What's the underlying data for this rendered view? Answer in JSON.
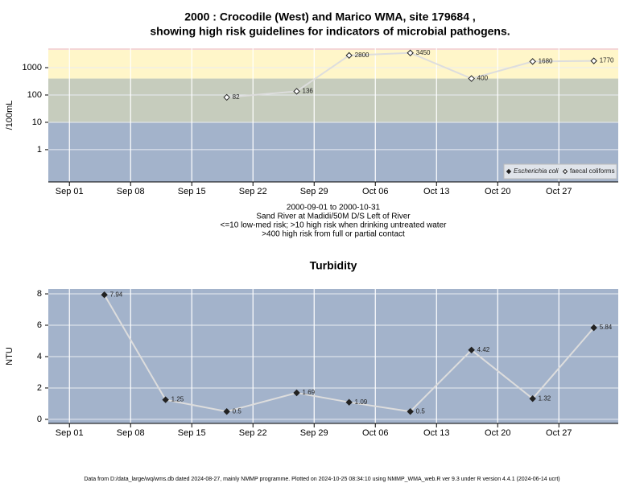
{
  "chart_data": [
    {
      "type": "line",
      "title": [
        "2000 : Crocodile (West) and Marico WMA, site 179684 ,",
        "showing high risk guidelines for indicators of microbial pathogens."
      ],
      "ylabel": "/100mL",
      "log_scale": true,
      "x": [
        "2000-09-19",
        "2000-09-27",
        "2000-10-03",
        "2000-10-10",
        "2000-10-17",
        "2000-10-24",
        "2000-10-31"
      ],
      "series": [
        {
          "name": "Escherichia coli",
          "color": "#222222",
          "marker": "filled",
          "values": [
            null,
            null,
            null,
            null,
            null,
            null,
            null
          ]
        },
        {
          "name": "faecal coliforms",
          "color": "#dddddd",
          "marker": "open",
          "values": [
            82,
            136,
            2800,
            3450,
            400,
            1680,
            1770
          ]
        }
      ],
      "xlim": [
        "2000-08-29T14:00",
        "2000-11-02T19:00"
      ],
      "xticks": [
        {
          "value": "2000-09-01",
          "label": "Sep 01"
        },
        {
          "value": "2000-09-08",
          "label": "Sep 08"
        },
        {
          "value": "2000-09-15",
          "label": "Sep 15"
        },
        {
          "value": "2000-09-22",
          "label": "Sep 22"
        },
        {
          "value": "2000-09-29",
          "label": "Sep 29"
        },
        {
          "value": "2000-10-06",
          "label": "Oct 06"
        },
        {
          "value": "2000-10-13",
          "label": "Oct 13"
        },
        {
          "value": "2000-10-20",
          "label": "Oct 20"
        },
        {
          "value": "2000-10-27",
          "label": "Oct 27"
        }
      ],
      "ylim": [
        0.066,
        5100
      ],
      "yticks": [
        1,
        10,
        100,
        1000
      ],
      "band_edges": [
        10,
        400
      ],
      "band_colors": [
        "#a3b3cb",
        "#c6ccbd",
        "#fff6c9"
      ],
      "grid": true,
      "legend": "bottom-right",
      "notes": [
        "2000-09-01 to 2000-10-31",
        "Sand River at Madidi/50M D/S Left of River",
        "<=10 low-med risk; >10 high risk when drinking untreated water",
        ">400 high risk from full or partial contact"
      ]
    },
    {
      "type": "line",
      "title": "Turbidity",
      "ylabel": "NTU",
      "color": "#dddddd",
      "background": "#a3b3cb",
      "x": [
        "2000-09-05",
        "2000-09-12",
        "2000-09-19",
        "2000-09-27",
        "2000-10-03",
        "2000-10-10",
        "2000-10-17",
        "2000-10-24",
        "2000-10-31"
      ],
      "values": [
        7.94,
        1.25,
        0.5,
        1.69,
        1.09,
        0.5,
        4.42,
        1.32,
        5.84
      ],
      "xlim": [
        "2000-08-29T14:00",
        "2000-11-02T19:00"
      ],
      "xticks": [
        {
          "value": "2000-09-01",
          "label": "Sep 01"
        },
        {
          "value": "2000-09-08",
          "label": "Sep 08"
        },
        {
          "value": "2000-09-15",
          "label": "Sep 15"
        },
        {
          "value": "2000-09-22",
          "label": "Sep 22"
        },
        {
          "value": "2000-09-29",
          "label": "Sep 29"
        },
        {
          "value": "2000-10-06",
          "label": "Oct 06"
        },
        {
          "value": "2000-10-13",
          "label": "Oct 13"
        },
        {
          "value": "2000-10-20",
          "label": "Oct 20"
        },
        {
          "value": "2000-10-27",
          "label": "Oct 27"
        }
      ],
      "ylim": [
        -0.26,
        8.31
      ],
      "yticks": [
        0,
        2,
        4,
        6,
        8
      ],
      "grid": true
    }
  ],
  "footer": "Data from D:/data_large/wq/wms.db dated 2024-08-27, mainly NMMP programme. Plotted on 2024-10-25 08:34:10 using NMMP_WMA_web.R ver 9.3 under R version 4.4.1 (2024-06-14 ucrt)"
}
